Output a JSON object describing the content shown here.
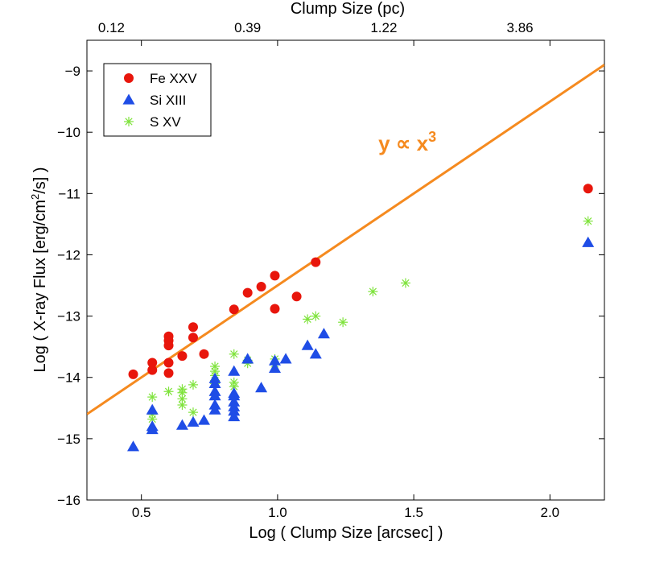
{
  "chart_data": {
    "type": "scatter",
    "title": "",
    "xlabel": "Log ( Clump Size [arcsec] )",
    "ylabel_prefix": "Log ( X-ray Flux [erg/cm",
    "ylabel_sup": "2",
    "ylabel_suffix": "/s] )",
    "top_xlabel": "Clump Size (pc)",
    "xlim": [
      0.3,
      2.2
    ],
    "ylim": [
      -16,
      -8.5
    ],
    "x_ticks": [
      0.5,
      1.0,
      1.5,
      2.0
    ],
    "x_tick_labels": [
      "0.5",
      "1.0",
      "1.5",
      "2.0"
    ],
    "y_ticks": [
      -16,
      -15,
      -14,
      -13,
      -12,
      -11,
      -10,
      -9
    ],
    "y_tick_labels": [
      "−16",
      "−15",
      "−14",
      "−13",
      "−12",
      "−11",
      "−10",
      "−9"
    ],
    "top_ticks": [
      0.39,
      0.89,
      1.39,
      1.89
    ],
    "top_tick_labels": [
      "0.12",
      "0.39",
      "1.22",
      "3.86"
    ],
    "legend_position": "top-left",
    "fit_line": {
      "label": "y ∝ x",
      "label_sup": "3",
      "color": "#f58a1f",
      "slope": 3,
      "x_range": [
        0.3,
        2.2
      ],
      "y_range": [
        -14.6,
        -8.9
      ],
      "label_x": 1.37,
      "label_y": -10.3
    },
    "series": [
      {
        "name": "Fe XXV",
        "marker": "circle",
        "color": "#e8160c",
        "points": [
          [
            0.47,
            -13.95
          ],
          [
            0.54,
            -13.76
          ],
          [
            0.54,
            -13.88
          ],
          [
            0.6,
            -13.33
          ],
          [
            0.6,
            -13.4
          ],
          [
            0.6,
            -13.48
          ],
          [
            0.6,
            -13.76
          ],
          [
            0.6,
            -13.93
          ],
          [
            0.65,
            -13.65
          ],
          [
            0.69,
            -13.18
          ],
          [
            0.69,
            -13.35
          ],
          [
            0.73,
            -13.62
          ],
          [
            0.84,
            -12.89
          ],
          [
            0.89,
            -12.62
          ],
          [
            0.94,
            -12.52
          ],
          [
            0.99,
            -12.34
          ],
          [
            0.99,
            -12.88
          ],
          [
            1.07,
            -12.68
          ],
          [
            1.14,
            -12.12
          ],
          [
            2.14,
            -10.92
          ]
        ]
      },
      {
        "name": "Si XIII",
        "marker": "triangle",
        "color": "#1f4de6",
        "points": [
          [
            0.47,
            -15.13
          ],
          [
            0.54,
            -14.53
          ],
          [
            0.54,
            -14.8
          ],
          [
            0.54,
            -14.85
          ],
          [
            0.65,
            -14.78
          ],
          [
            0.69,
            -14.73
          ],
          [
            0.73,
            -14.7
          ],
          [
            0.77,
            -14.02
          ],
          [
            0.77,
            -14.1
          ],
          [
            0.77,
            -14.23
          ],
          [
            0.77,
            -14.3
          ],
          [
            0.77,
            -14.45
          ],
          [
            0.77,
            -14.53
          ],
          [
            0.84,
            -13.9
          ],
          [
            0.84,
            -14.26
          ],
          [
            0.84,
            -14.3
          ],
          [
            0.84,
            -14.4
          ],
          [
            0.84,
            -14.48
          ],
          [
            0.84,
            -14.55
          ],
          [
            0.84,
            -14.64
          ],
          [
            0.89,
            -13.7
          ],
          [
            0.94,
            -14.17
          ],
          [
            0.99,
            -13.73
          ],
          [
            0.99,
            -13.85
          ],
          [
            1.03,
            -13.7
          ],
          [
            1.11,
            -13.48
          ],
          [
            1.14,
            -13.62
          ],
          [
            1.17,
            -13.29
          ],
          [
            2.14,
            -11.8
          ]
        ]
      },
      {
        "name": "S XV",
        "marker": "asterisk",
        "color": "#7fe33c",
        "points": [
          [
            0.54,
            -14.32
          ],
          [
            0.54,
            -14.6
          ],
          [
            0.54,
            -14.68
          ],
          [
            0.6,
            -14.23
          ],
          [
            0.65,
            -14.19
          ],
          [
            0.65,
            -14.25
          ],
          [
            0.65,
            -14.35
          ],
          [
            0.65,
            -14.45
          ],
          [
            0.69,
            -14.12
          ],
          [
            0.69,
            -14.57
          ],
          [
            0.77,
            -13.82
          ],
          [
            0.77,
            -13.9
          ],
          [
            0.77,
            -13.97
          ],
          [
            0.77,
            -14.05
          ],
          [
            0.77,
            -14.1
          ],
          [
            0.84,
            -13.62
          ],
          [
            0.84,
            -14.08
          ],
          [
            0.84,
            -14.15
          ],
          [
            0.89,
            -13.72
          ],
          [
            0.89,
            -13.77
          ],
          [
            0.99,
            -13.7
          ],
          [
            0.99,
            -13.78
          ],
          [
            1.11,
            -13.05
          ],
          [
            1.14,
            -13.0
          ],
          [
            1.24,
            -13.1
          ],
          [
            1.35,
            -12.6
          ],
          [
            1.47,
            -12.46
          ],
          [
            2.14,
            -11.45
          ]
        ]
      }
    ]
  }
}
